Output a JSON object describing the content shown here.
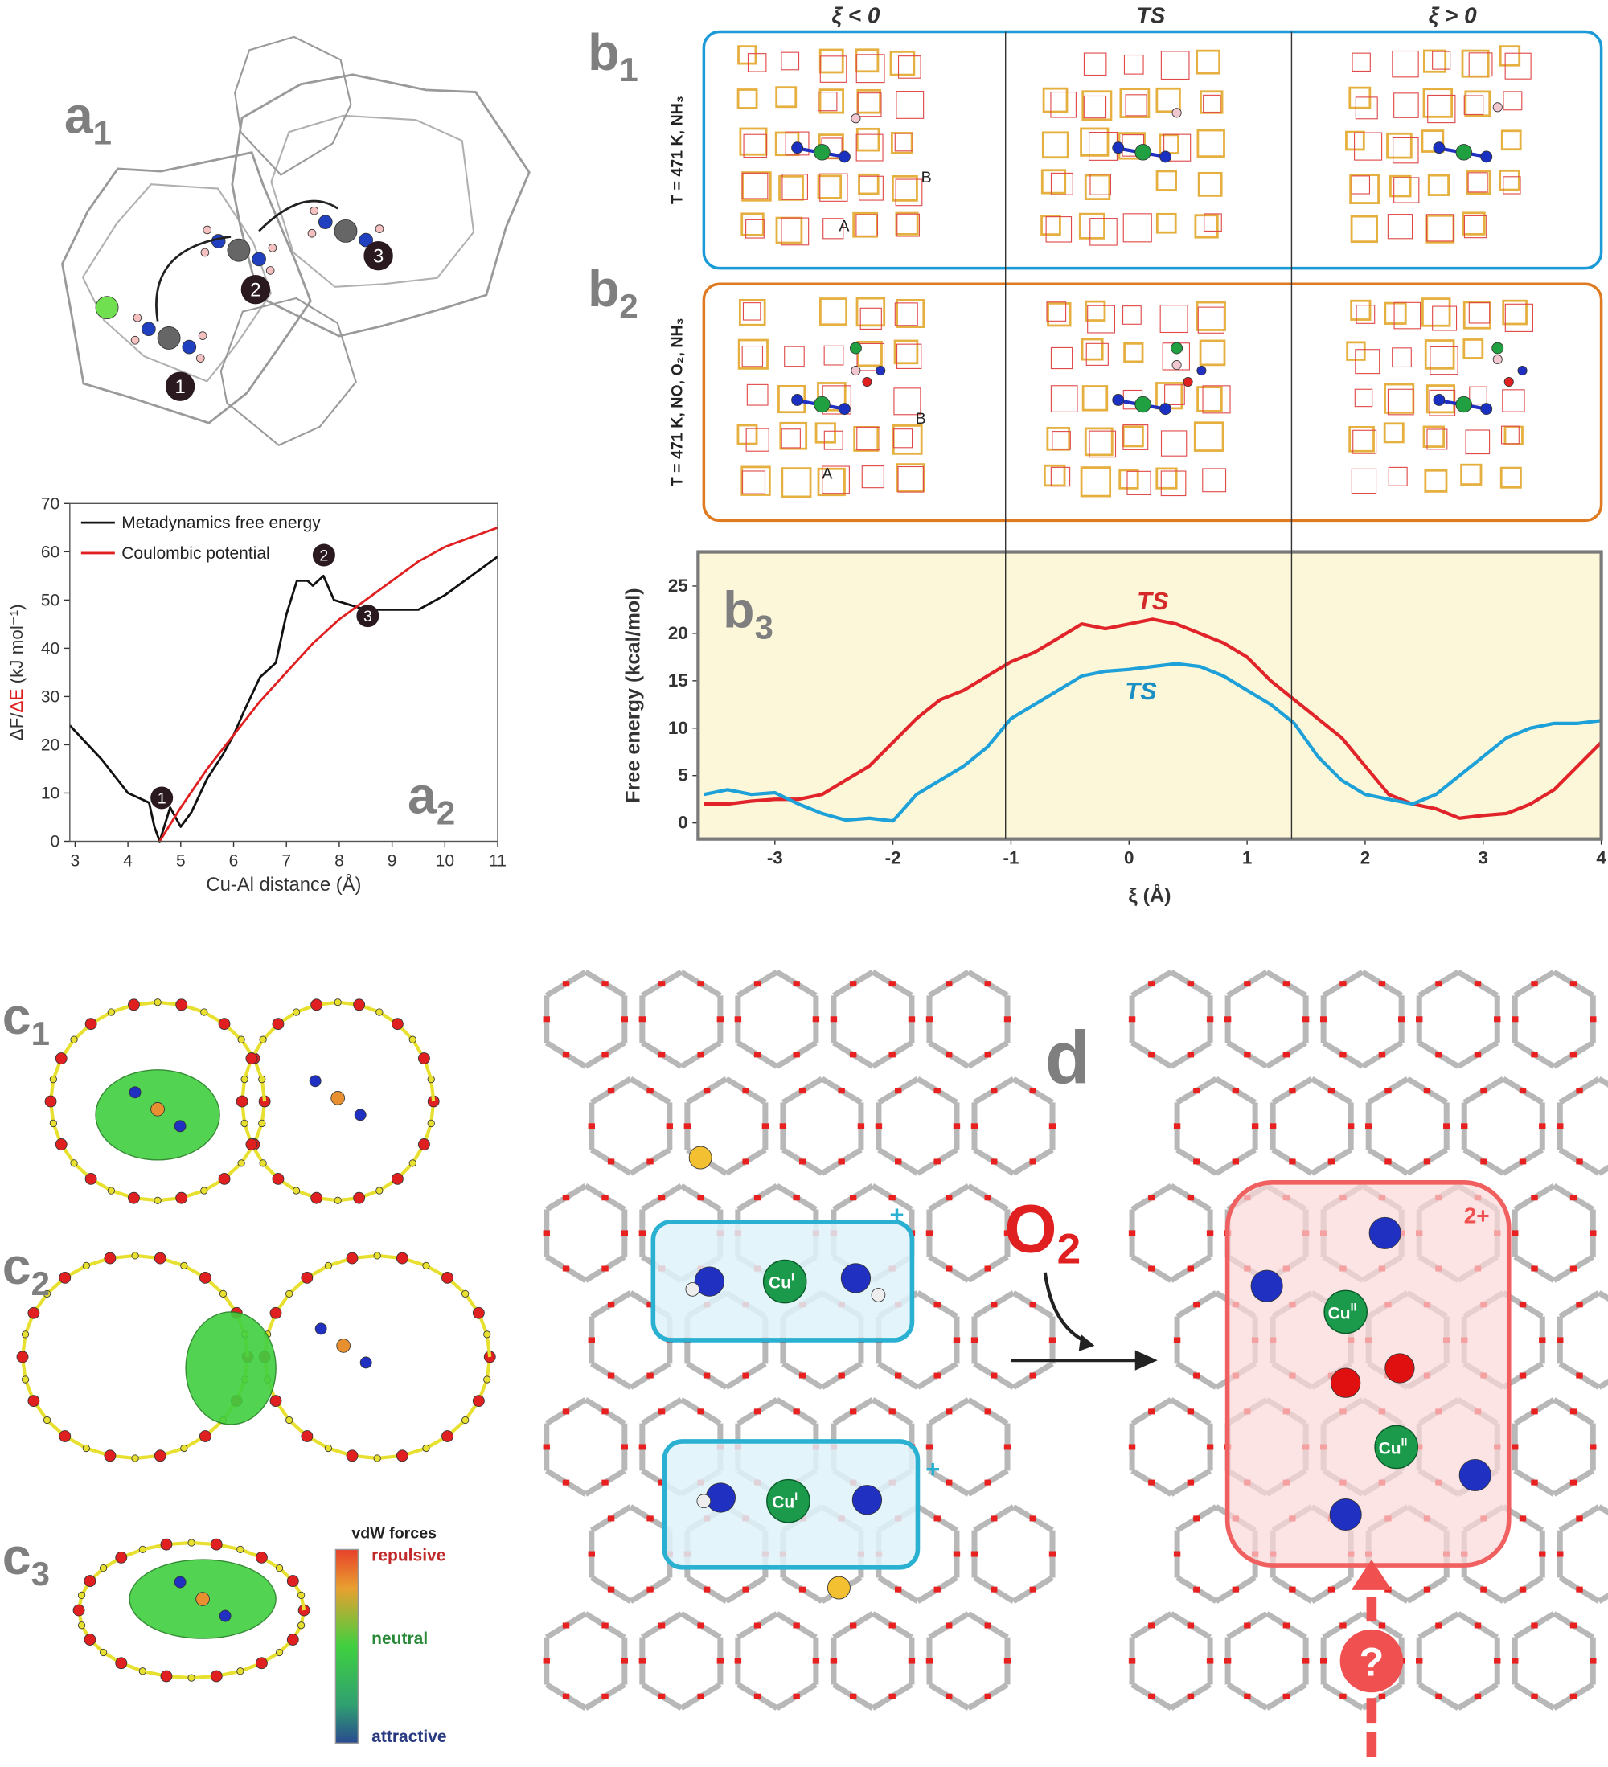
{
  "chart_data": [
    {
      "type": "line",
      "x_label": "Cu-Al distance (Å)",
      "y_label_parts": [
        "ΔF/",
        "ΔE",
        " (kJ mol⁻¹)"
      ],
      "xlim": [
        2.9,
        11
      ],
      "ylim": [
        0,
        70
      ],
      "xticks": [
        3,
        4,
        5,
        6,
        7,
        8,
        9,
        10,
        11
      ],
      "yticks": [
        0,
        10,
        20,
        30,
        40,
        50,
        60,
        70
      ],
      "legend": "upper left",
      "series": [
        {
          "name": "Metadynamics free energy",
          "color": "#111111",
          "x": [
            2.9,
            3.5,
            4.0,
            4.4,
            4.5,
            4.6,
            4.8,
            5.0,
            5.2,
            5.5,
            5.8,
            6.0,
            6.2,
            6.5,
            6.8,
            7.0,
            7.2,
            7.4,
            7.5,
            7.7,
            7.9,
            8.2,
            8.5,
            9.0,
            9.5,
            10.0,
            10.5,
            11.0
          ],
          "values": [
            24,
            17,
            10,
            8,
            3,
            0,
            7,
            3,
            6,
            13,
            18,
            22,
            27,
            34,
            37,
            47,
            54,
            54,
            53,
            55,
            50,
            49,
            48,
            48,
            48,
            51,
            55,
            59
          ]
        },
        {
          "name": "Coulombic potential",
          "color": "#e02020",
          "x": [
            4.6,
            5.0,
            5.5,
            6.0,
            6.5,
            7.0,
            7.5,
            8.0,
            8.5,
            9.0,
            9.5,
            10.0,
            10.5,
            11.0
          ],
          "values": [
            0,
            7,
            15,
            22,
            29,
            35,
            41,
            46,
            50,
            54,
            58,
            61,
            63,
            65
          ]
        }
      ],
      "annotations": [
        {
          "text": "1",
          "x": 4.64,
          "y": 9
        },
        {
          "text": "2",
          "x": 7.71,
          "y": 59.3
        },
        {
          "text": "3",
          "x": 8.54,
          "y": 46.7
        }
      ]
    },
    {
      "type": "line",
      "x_label": "ξ (Å)",
      "y_label": "Free energy (kcal/mol)",
      "xlim": [
        -3.65,
        4
      ],
      "ylim": [
        -1.7,
        28.6
      ],
      "xticks": [
        -3,
        -2,
        -1,
        0,
        1,
        2,
        3,
        4
      ],
      "yticks": [
        0,
        5,
        10,
        15,
        20,
        25
      ],
      "background": "#fdf7d9",
      "x": [
        -3.6,
        -3.4,
        -3.2,
        -3,
        -2.8,
        -2.6,
        -2.4,
        -2.2,
        -2,
        -1.8,
        -1.6,
        -1.4,
        -1.2,
        -1,
        -0.8,
        -0.6,
        -0.4,
        -0.2,
        0,
        0.2,
        0.4,
        0.6,
        0.8,
        1,
        1.2,
        1.4,
        1.6,
        1.8,
        2,
        2.2,
        2.4,
        2.6,
        2.8,
        3,
        3.2,
        3.4,
        3.6,
        3.8,
        4
      ],
      "series": [
        {
          "color": "#e0242a",
          "values": [
            2,
            2,
            2.3,
            2.5,
            2.5,
            3,
            4.5,
            6,
            8.5,
            11,
            13,
            14,
            15.5,
            17,
            18,
            19.5,
            21,
            20.5,
            21,
            21.5,
            21,
            20,
            19,
            17.5,
            15,
            13,
            11,
            9,
            6,
            3,
            2,
            1.5,
            0.5,
            0.8,
            1,
            2,
            3.5,
            6,
            8.5
          ]
        },
        {
          "color": "#1ea0d8",
          "values": [
            3,
            3.5,
            3,
            3.2,
            2,
            1,
            0.3,
            0.5,
            0.2,
            3,
            4.5,
            6,
            8,
            11,
            12.5,
            14,
            15.5,
            16,
            16.2,
            16.5,
            16.8,
            16.5,
            15.5,
            14,
            12.5,
            10.5,
            7,
            4.5,
            3,
            2.5,
            2,
            3,
            5,
            7,
            9,
            10,
            10.5,
            10.5,
            10.8
          ]
        }
      ],
      "annotations": [
        {
          "text": "TS",
          "x": 0.2,
          "y": 23.5,
          "color": "#d42a2a"
        },
        {
          "text": "TS",
          "x": 0.1,
          "y": 14,
          "color": "#1a8fc4"
        }
      ]
    }
  ],
  "panel_labels": [
    {
      "main": "a",
      "sub": "1"
    },
    {
      "main": "a",
      "sub": "2"
    },
    {
      "main": "b",
      "sub": "1"
    },
    {
      "main": "b",
      "sub": "2"
    },
    {
      "main": "b",
      "sub": "3"
    },
    {
      "main": "c",
      "sub": "1"
    },
    {
      "main": "c",
      "sub": "2"
    },
    {
      "main": "c",
      "sub": "3"
    },
    {
      "main": "d"
    }
  ],
  "a1_markers": [
    "1",
    "2",
    "3"
  ],
  "column_headers": [
    "ξ < 0",
    "TS",
    "ξ > 0"
  ],
  "row_labels": [
    "T = 471 K, NH₃",
    "T = 471 K, NO, O₂, NH₃"
  ],
  "site_labels": [
    "A",
    "B",
    "A",
    "B"
  ],
  "c3_legend": {
    "title": "vdW forces",
    "top": "repulsive",
    "middle": "neutral",
    "bottom": "attractive"
  },
  "d_labels": {
    "reactant": "O",
    "reactant_sub": "2",
    "charge_upper": "+",
    "charge_lower": "+",
    "charge_product": "2+",
    "cu_reactant": "Cu",
    "cu_reactant_ox": "I",
    "cu_product": "Cu",
    "cu_product_ox": "II",
    "question": "?"
  }
}
